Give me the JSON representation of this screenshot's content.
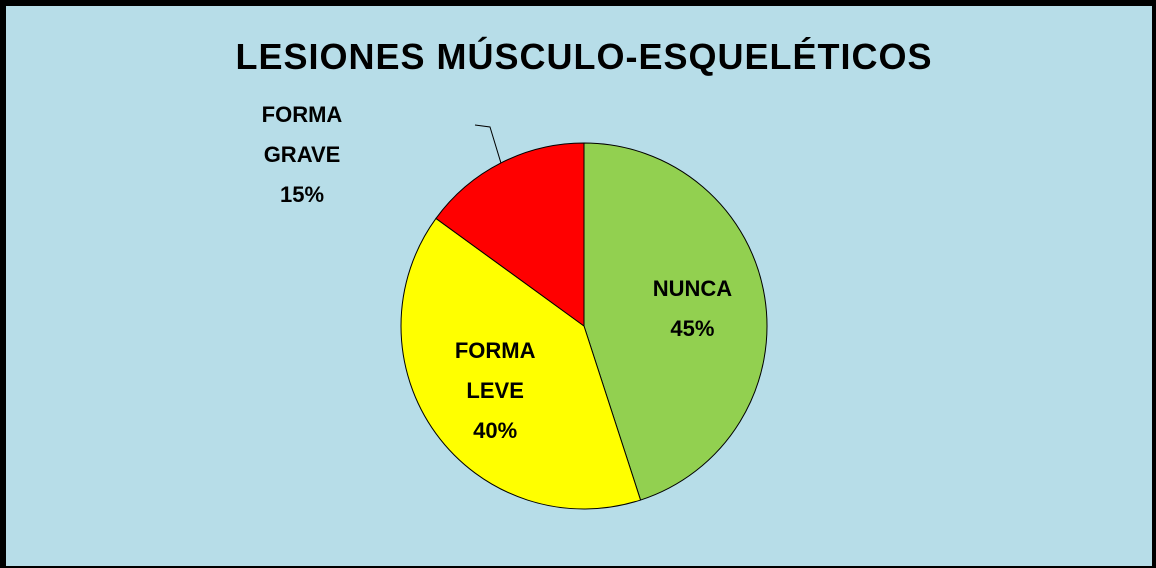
{
  "chart_data": {
    "type": "pie",
    "title": "LESIONES MÚSCULO-ESQUELÉTICOS",
    "categories": [
      "NUNCA",
      "FORMA LEVE",
      "FORMA GRAVE"
    ],
    "values": [
      45,
      40,
      15
    ],
    "value_labels": [
      "45%",
      "40%",
      "15%"
    ],
    "colors": [
      "#92d050",
      "#ffff00",
      "#ff0000"
    ]
  }
}
